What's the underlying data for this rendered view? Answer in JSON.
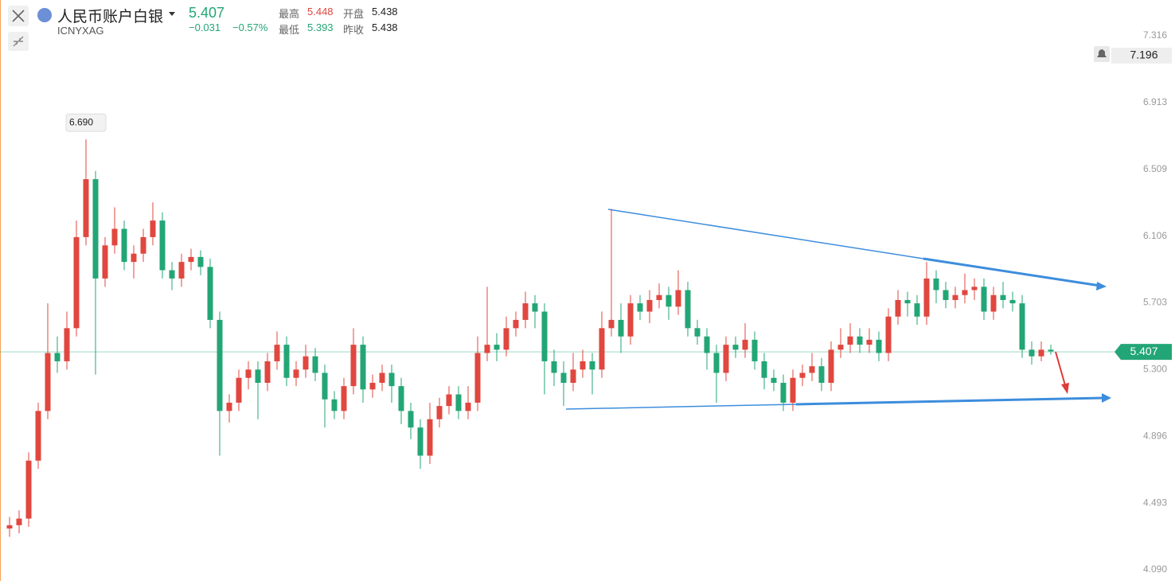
{
  "header": {
    "title": "人民币账户白银",
    "symbol": "ICNYXAG",
    "price": "5.407",
    "change": "−0.031",
    "change_pct": "−0.57%",
    "stats": [
      {
        "label": "最高",
        "value": "5.448"
      },
      {
        "label": "开盘",
        "value": "5.438"
      },
      {
        "label": "最低",
        "value": "5.393"
      },
      {
        "label": "昨收",
        "value": "5.438"
      }
    ]
  },
  "chart_data": {
    "type": "candlestick",
    "up_color": "#e0473f",
    "down_color": "#23a676",
    "ylim": [
      4.023,
      7.532
    ],
    "yticks": [
      {
        "value": 4.09,
        "label": "4.090"
      },
      4.493,
      4.896,
      {
        "value": 5.3,
        "label": "5.300"
      },
      5.703,
      6.106,
      6.509,
      6.913,
      7.316
    ],
    "last_price": {
      "value": 5.407,
      "label": "5.407"
    },
    "alert": {
      "value": 7.196,
      "label": "7.196"
    },
    "max_marker": {
      "value": 6.69,
      "label": "6.690"
    },
    "open": [
      4.34,
      4.36,
      4.4,
      4.75,
      5.05,
      5.4,
      5.35,
      5.55,
      6.1,
      6.45,
      5.85,
      6.05,
      6.15,
      5.95,
      6.0,
      6.1,
      6.2,
      5.9,
      5.85,
      5.95,
      5.98,
      5.92,
      5.6,
      5.05,
      5.1,
      5.25,
      5.3,
      5.22,
      5.35,
      5.45,
      5.25,
      5.3,
      5.38,
      5.28,
      5.12,
      5.05,
      5.2,
      5.45,
      5.18,
      5.22,
      5.28,
      5.2,
      5.05,
      4.95,
      4.78,
      5.0,
      5.08,
      5.15,
      5.05,
      5.1,
      5.4,
      5.45,
      5.42,
      5.55,
      5.6,
      5.7,
      5.65,
      5.35,
      5.28,
      5.22,
      5.3,
      5.35,
      5.3,
      5.55,
      5.6,
      5.5,
      5.7,
      5.65,
      5.72,
      5.75,
      5.68,
      5.78,
      5.55,
      5.5,
      5.4,
      5.28,
      5.45,
      5.42,
      5.48,
      5.35,
      5.25,
      5.22,
      5.1,
      5.25,
      5.28,
      5.32,
      5.22,
      5.42,
      5.45,
      5.5,
      5.45,
      5.48,
      5.4,
      5.62,
      5.72,
      5.7,
      5.62,
      5.85,
      5.78,
      5.72,
      5.75,
      5.78,
      5.8,
      5.65,
      5.75,
      5.72,
      5.7,
      5.42,
      5.38,
      5.42
    ],
    "high": [
      4.41,
      4.45,
      4.8,
      5.1,
      5.7,
      5.5,
      5.65,
      6.2,
      6.69,
      6.5,
      6.1,
      6.28,
      6.2,
      6.05,
      6.15,
      6.31,
      6.25,
      5.95,
      6.0,
      6.03,
      6.02,
      5.97,
      5.65,
      5.15,
      5.3,
      5.35,
      5.35,
      5.4,
      5.53,
      5.5,
      5.35,
      5.45,
      5.43,
      5.33,
      5.17,
      5.25,
      5.55,
      5.5,
      5.27,
      5.33,
      5.33,
      5.25,
      5.1,
      5.0,
      5.1,
      5.13,
      5.2,
      5.2,
      5.2,
      5.5,
      5.8,
      5.52,
      5.62,
      5.65,
      5.77,
      5.75,
      5.7,
      5.42,
      5.35,
      5.4,
      5.42,
      5.4,
      5.65,
      6.27,
      5.7,
      5.75,
      5.75,
      5.78,
      5.82,
      5.8,
      5.9,
      5.83,
      5.6,
      5.55,
      5.45,
      5.5,
      5.5,
      5.58,
      5.53,
      5.4,
      5.3,
      5.27,
      5.3,
      5.33,
      5.4,
      5.37,
      5.47,
      5.55,
      5.58,
      5.55,
      5.55,
      5.53,
      5.67,
      5.78,
      5.77,
      5.75,
      5.95,
      5.9,
      5.83,
      5.8,
      5.88,
      5.85,
      5.85,
      5.8,
      5.83,
      5.77,
      5.75,
      5.47,
      5.47,
      5.45
    ],
    "low": [
      4.29,
      4.31,
      4.35,
      4.7,
      5.0,
      5.28,
      5.3,
      5.5,
      6.05,
      5.27,
      5.8,
      6.0,
      5.9,
      5.85,
      5.95,
      6.05,
      5.85,
      5.78,
      5.8,
      5.9,
      5.87,
      5.55,
      4.78,
      4.98,
      5.05,
      5.18,
      5.0,
      5.17,
      5.3,
      5.2,
      5.2,
      5.25,
      5.23,
      4.95,
      5.0,
      5.0,
      5.15,
      5.1,
      5.13,
      5.17,
      5.1,
      4.97,
      4.88,
      4.7,
      4.73,
      4.95,
      5.03,
      5.0,
      5.0,
      5.05,
      5.35,
      5.35,
      5.38,
      5.5,
      5.55,
      5.55,
      5.15,
      5.2,
      5.08,
      5.17,
      5.25,
      5.15,
      5.25,
      5.5,
      5.4,
      5.45,
      5.6,
      5.58,
      5.67,
      5.6,
      5.63,
      5.5,
      5.45,
      5.3,
      5.1,
      5.23,
      5.37,
      5.37,
      5.3,
      5.18,
      5.17,
      5.05,
      5.05,
      5.2,
      5.23,
      5.17,
      5.17,
      5.37,
      5.4,
      5.4,
      5.4,
      5.35,
      5.35,
      5.57,
      5.62,
      5.57,
      5.57,
      5.7,
      5.67,
      5.67,
      5.7,
      5.72,
      5.6,
      5.6,
      5.67,
      5.65,
      5.37,
      5.33,
      5.35,
      5.39
    ],
    "close": [
      4.36,
      4.4,
      4.75,
      5.05,
      5.4,
      5.35,
      5.55,
      6.1,
      6.45,
      5.85,
      6.05,
      6.15,
      5.95,
      6.0,
      6.1,
      6.2,
      5.9,
      5.85,
      5.95,
      5.98,
      5.92,
      5.6,
      5.05,
      5.1,
      5.25,
      5.3,
      5.22,
      5.35,
      5.45,
      5.25,
      5.3,
      5.38,
      5.28,
      5.12,
      5.05,
      5.2,
      5.45,
      5.18,
      5.22,
      5.28,
      5.2,
      5.05,
      4.95,
      4.78,
      5.0,
      5.08,
      5.15,
      5.05,
      5.1,
      5.4,
      5.45,
      5.42,
      5.55,
      5.6,
      5.7,
      5.65,
      5.35,
      5.28,
      5.22,
      5.3,
      5.35,
      5.3,
      5.55,
      5.6,
      5.5,
      5.7,
      5.65,
      5.72,
      5.75,
      5.68,
      5.78,
      5.55,
      5.5,
      5.4,
      5.28,
      5.45,
      5.42,
      5.48,
      5.35,
      5.25,
      5.22,
      5.1,
      5.25,
      5.28,
      5.32,
      5.22,
      5.42,
      5.45,
      5.5,
      5.45,
      5.48,
      5.4,
      5.62,
      5.72,
      5.7,
      5.62,
      5.85,
      5.78,
      5.72,
      5.75,
      5.78,
      5.8,
      5.65,
      5.75,
      5.72,
      5.7,
      5.42,
      5.38,
      5.42,
      5.41
    ]
  }
}
